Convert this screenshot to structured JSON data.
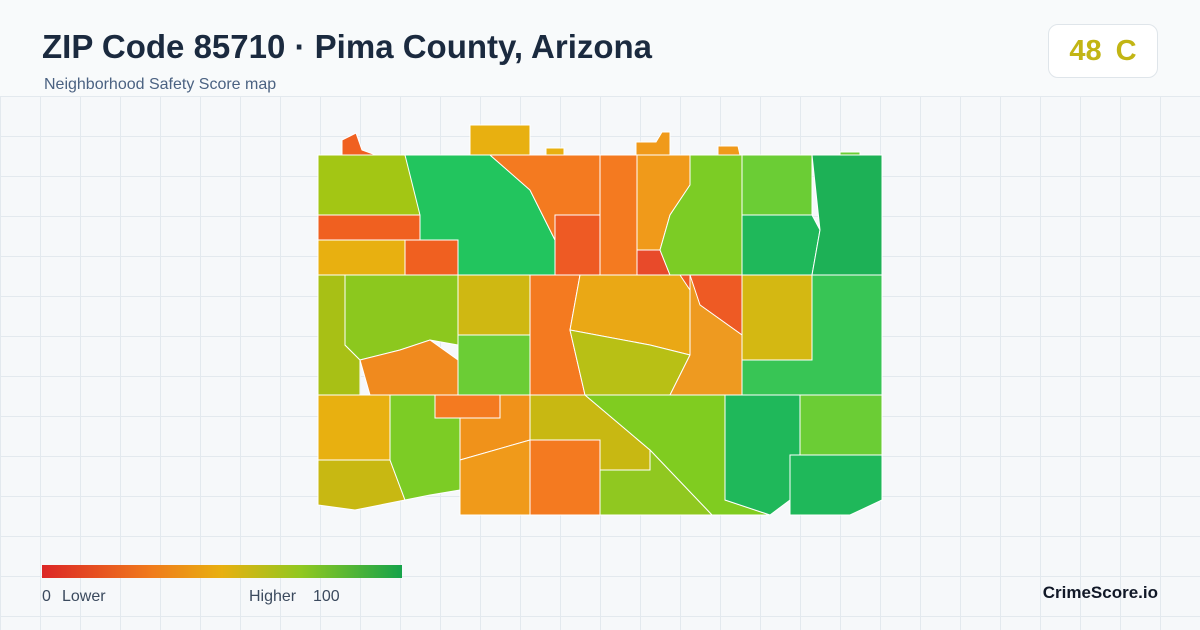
{
  "header": {
    "title": "ZIP Code 85710 · Pima County, Arizona",
    "subtitle": "Neighborhood Safety Score map"
  },
  "score": {
    "value": 48,
    "grade": "C"
  },
  "legend": {
    "min": 0,
    "min_label": "Lower",
    "max_label": "Higher",
    "max": 100
  },
  "brand": "CrimeScore.io"
}
